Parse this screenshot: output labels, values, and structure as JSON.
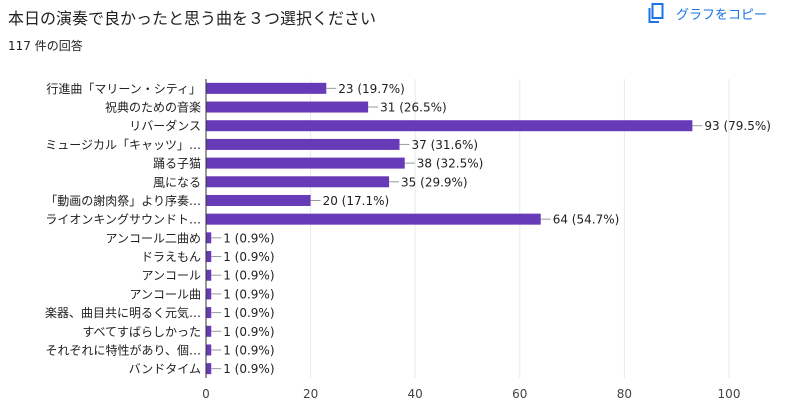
{
  "header": {
    "title": "本日の演奏で良かったと思う曲を３つ選択ください",
    "response_count": "117 件の回答",
    "copy_label": "グラフをコピー",
    "copy_icon": "copy-icon"
  },
  "colors": {
    "bar": "#673ab7",
    "grid": "#e8eaed",
    "axis": "#333333",
    "text": "#202124",
    "accent": "#1a73e8"
  },
  "chart_data": {
    "type": "bar",
    "orientation": "horizontal",
    "categories": [
      "行進曲「マリーン・シティ」",
      "祝典のための音楽",
      "リバーダンス",
      "ミュージカル「キャッツ」…",
      "踊る子猫",
      "風になる",
      "「動画の謝肉祭」より序奏…",
      "ライオンキングサウンドト…",
      "アンコール二曲め",
      "ドラえもん",
      "アンコール",
      "アンコール曲",
      "楽器、曲目共に明るく元気…",
      "すべてすばらしかった",
      "それぞれに特性があり、個…",
      "バンドタイム"
    ],
    "values": [
      23,
      31,
      93,
      37,
      38,
      35,
      20,
      64,
      1,
      1,
      1,
      1,
      1,
      1,
      1,
      1
    ],
    "data_labels": [
      "23 (19.7%)",
      "31 (26.5%)",
      "93 (79.5%)",
      "37 (31.6%)",
      "38 (32.5%)",
      "35 (29.9%)",
      "20 (17.1%)",
      "64 (54.7%)",
      "1 (0.9%)",
      "1 (0.9%)",
      "1 (0.9%)",
      "1 (0.9%)",
      "1 (0.9%)",
      "1 (0.9%)",
      "1 (0.9%)",
      "1 (0.9%)"
    ],
    "xlim": [
      0,
      100
    ],
    "xticks": [
      0,
      20,
      40,
      60,
      80,
      100
    ],
    "grid": true,
    "legend": "none"
  }
}
